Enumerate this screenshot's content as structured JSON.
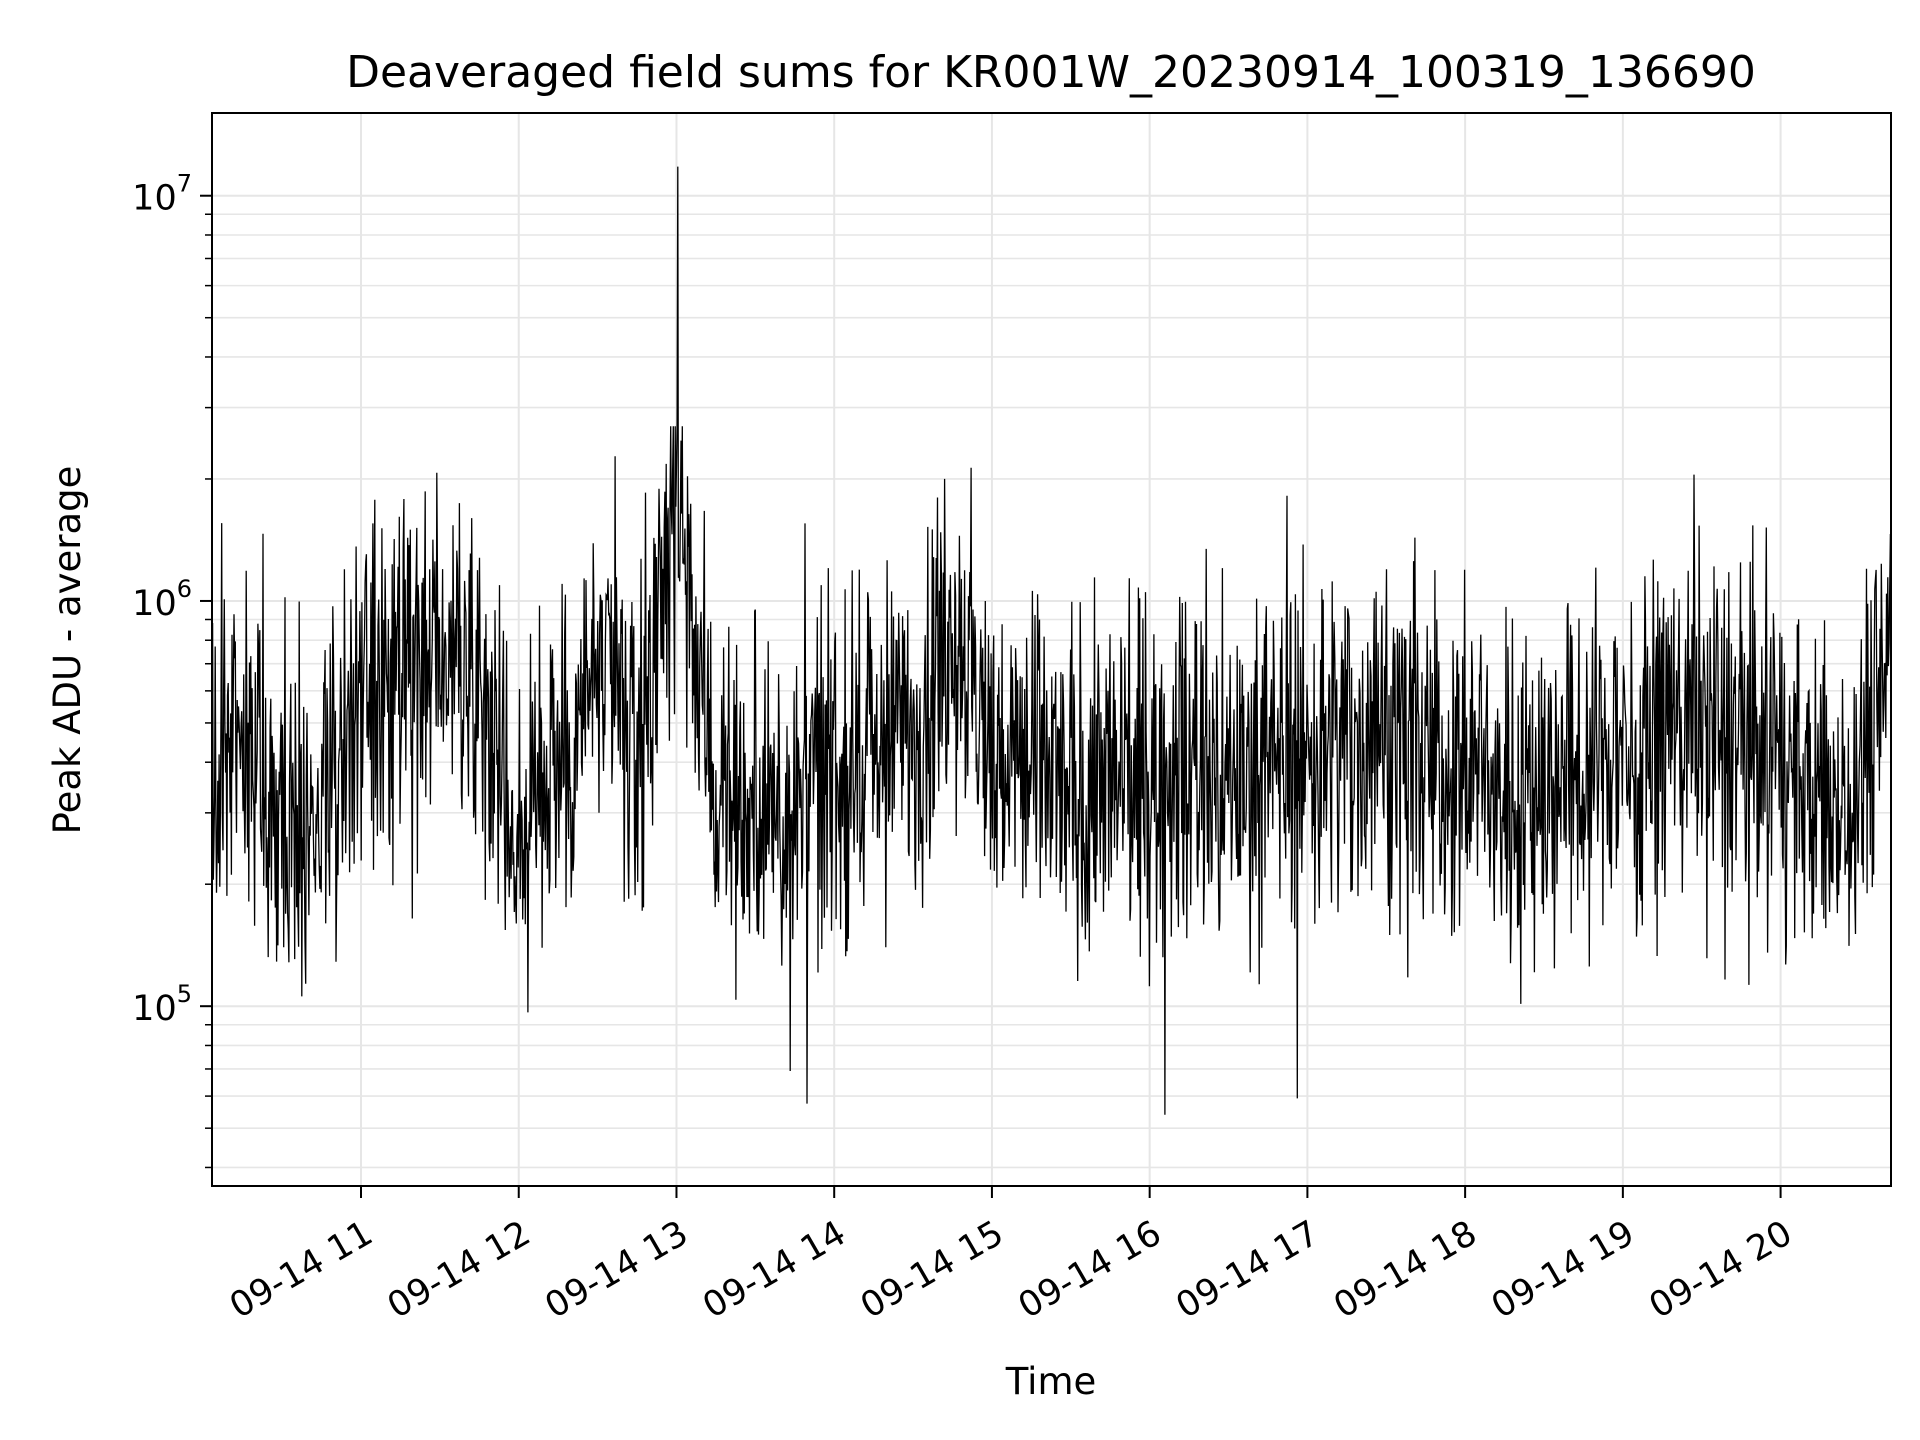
{
  "chart_data": {
    "type": "line",
    "title": "Deaveraged field sums for KR001W_20230914_100319_136690",
    "xlabel": "Time",
    "ylabel": "Peak ADU - average",
    "yscale": "log",
    "ylim": [
      36000,
      16000000
    ],
    "xlim": [
      "2023-09-14 10:03:19",
      "2023-09-14 20:42:00"
    ],
    "grid": true,
    "line_color": "#000000",
    "grid_color": "#e6e6e6",
    "x_ticks": [
      {
        "label": "09-14 11",
        "value": "2023-09-14 11:00:00"
      },
      {
        "label": "09-14 12",
        "value": "2023-09-14 12:00:00"
      },
      {
        "label": "09-14 13",
        "value": "2023-09-14 13:00:00"
      },
      {
        "label": "09-14 14",
        "value": "2023-09-14 14:00:00"
      },
      {
        "label": "09-14 15",
        "value": "2023-09-14 15:00:00"
      },
      {
        "label": "09-14 16",
        "value": "2023-09-14 16:00:00"
      },
      {
        "label": "09-14 17",
        "value": "2023-09-14 17:00:00"
      },
      {
        "label": "09-14 18",
        "value": "2023-09-14 18:00:00"
      },
      {
        "label": "09-14 19",
        "value": "2023-09-14 19:00:00"
      },
      {
        "label": "09-14 20",
        "value": "2023-09-14 20:00:00"
      }
    ],
    "y_ticks": [
      {
        "base": "10",
        "exp": "5",
        "value": 100000
      },
      {
        "base": "10",
        "exp": "6",
        "value": 1000000
      },
      {
        "base": "10",
        "exp": "7",
        "value": 10000000
      }
    ],
    "series_summary": {
      "typical_level": 350000,
      "noise_min": 45000,
      "noise_max": 2700000,
      "notable_peak": {
        "time": "2023-09-14 13:00:30",
        "value": 11800000
      }
    },
    "x": [
      "2023-09-14 10:03:19",
      "2023-09-14 10:15:00",
      "2023-09-14 10:30:00",
      "2023-09-14 10:45:00",
      "2023-09-14 11:00:00",
      "2023-09-14 11:15:00",
      "2023-09-14 11:30:00",
      "2023-09-14 11:45:00",
      "2023-09-14 12:00:00",
      "2023-09-14 12:15:00",
      "2023-09-14 12:30:00",
      "2023-09-14 12:45:00",
      "2023-09-14 13:00:30",
      "2023-09-14 13:15:00",
      "2023-09-14 13:30:00",
      "2023-09-14 13:45:00",
      "2023-09-14 14:00:00",
      "2023-09-14 14:15:00",
      "2023-09-14 14:30:00",
      "2023-09-14 14:45:00",
      "2023-09-14 15:00:00",
      "2023-09-14 15:15:00",
      "2023-09-14 15:30:00",
      "2023-09-14 15:45:00",
      "2023-09-14 16:00:00",
      "2023-09-14 16:15:00",
      "2023-09-14 16:30:00",
      "2023-09-14 16:45:00",
      "2023-09-14 17:00:00",
      "2023-09-14 17:15:00",
      "2023-09-14 17:30:00",
      "2023-09-14 17:45:00",
      "2023-09-14 18:00:00",
      "2023-09-14 18:15:00",
      "2023-09-14 18:30:00",
      "2023-09-14 18:45:00",
      "2023-09-14 19:00:00",
      "2023-09-14 19:15:00",
      "2023-09-14 19:30:00",
      "2023-09-14 19:45:00",
      "2023-09-14 20:00:00",
      "2023-09-14 20:15:00",
      "2023-09-14 20:30:00",
      "2023-09-14 20:42:00"
    ],
    "y": [
      420000,
      380000,
      300000,
      330000,
      520000,
      600000,
      750000,
      650000,
      260000,
      380000,
      700000,
      420000,
      11800000,
      330000,
      300000,
      320000,
      380000,
      400000,
      480000,
      900000,
      420000,
      380000,
      330000,
      360000,
      340000,
      360000,
      380000,
      400000,
      420000,
      450000,
      480000,
      400000,
      380000,
      350000,
      360000,
      380000,
      430000,
      480000,
      520000,
      470000,
      400000,
      330000,
      380000,
      900000
    ]
  }
}
